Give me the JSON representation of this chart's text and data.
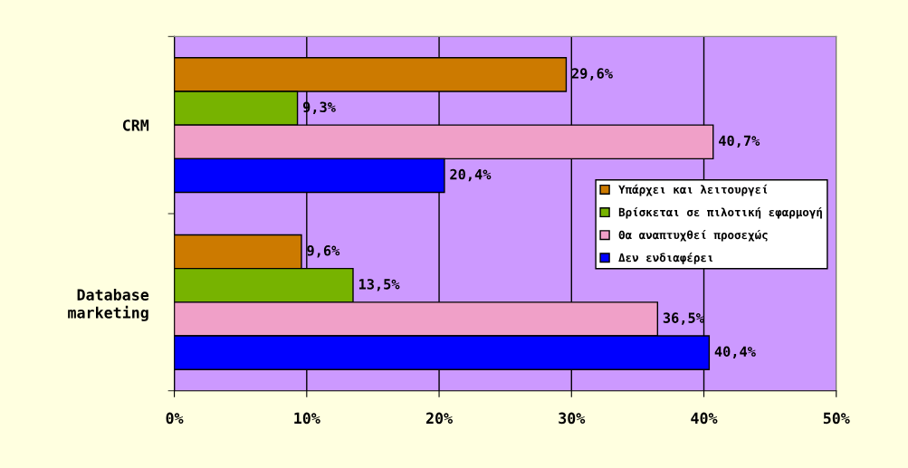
{
  "chart_data": {
    "type": "bar",
    "orientation": "horizontal",
    "categories": [
      "CRM",
      "Database\nmarketing"
    ],
    "series": [
      {
        "name": "Υπάρχει και λειτουργεί",
        "color": "#cc7a00",
        "values": [
          29.6,
          9.6
        ],
        "value_labels": [
          "29,6%",
          "9,6%"
        ]
      },
      {
        "name": "Βρίσκεται σε πιλοτική εφαρμογή",
        "color": "#77b300",
        "values": [
          9.3,
          13.5
        ],
        "value_labels": [
          "9,3%",
          "13,5%"
        ]
      },
      {
        "name": "Θα αναπτυχθεί προσεχώς",
        "color": "#f0a0c8",
        "values": [
          40.7,
          36.5
        ],
        "value_labels": [
          "40,7%",
          "36,5%"
        ]
      },
      {
        "name": "Δεν ενδιαφέρει",
        "color": "#0000ff",
        "values": [
          20.4,
          40.4
        ],
        "value_labels": [
          "20,4%",
          "40,4%"
        ]
      }
    ],
    "xlim": [
      0,
      50
    ],
    "xticks": [
      {
        "value": 0,
        "label": "0%"
      },
      {
        "value": 10,
        "label": "10%"
      },
      {
        "value": 20,
        "label": "20%"
      },
      {
        "value": 30,
        "label": "30%"
      },
      {
        "value": 40,
        "label": "40%"
      },
      {
        "value": 50,
        "label": "50%"
      }
    ],
    "grid": "x",
    "legend": "right"
  }
}
